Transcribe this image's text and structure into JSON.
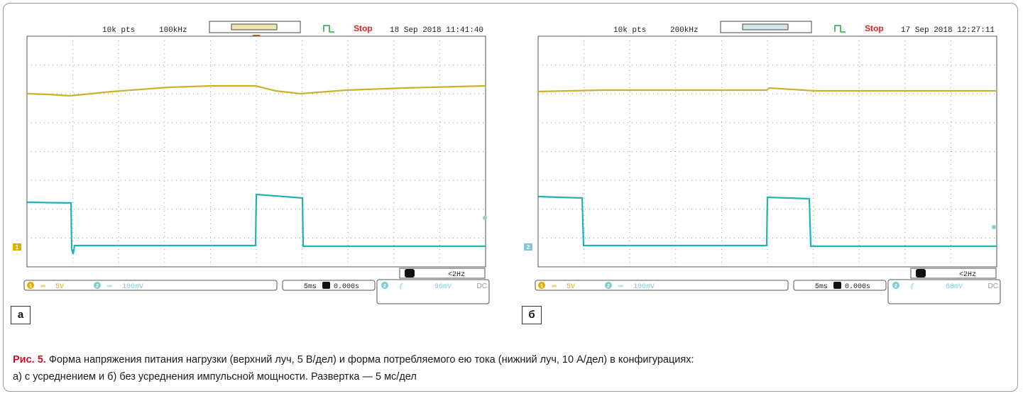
{
  "panels": [
    {
      "label": "а",
      "pts": "10k pts",
      "freq": "100kHz",
      "status": "Stop",
      "datetime": "18 Sep 2018 11:41:40",
      "ch1_scale": "5V",
      "ch2_scale": "100mV",
      "timebase": "5ms",
      "delay": "0.000s",
      "trig_freq": "<2Hz",
      "trig_level": "96mV",
      "coupling": "DC",
      "ch1_marker": "1",
      "ch2_marker": "2"
    },
    {
      "label": "б",
      "pts": "10k pts",
      "freq": "200kHz",
      "status": "Stop",
      "datetime": "17 Sep 2018 12:27:11",
      "ch1_scale": "5V",
      "ch2_scale": "100mV",
      "timebase": "5ms",
      "delay": "0.000s",
      "trig_freq": "<2Hz",
      "trig_level": "68mV",
      "coupling": "DC",
      "ch1_marker": "1",
      "ch2_marker": "2"
    }
  ],
  "caption": {
    "fig": "Рис. 5.",
    "line1": "Форма напряжения питания нагрузки (верхний луч, 5 В/дел) и форма потребляемого ею тока (нижний луч, 10 А/дел) в конфигурациях:",
    "line2": "а) с усреднением и б) без усреднения импульсной мощности. Развертка — 5 мс/дел"
  },
  "colors": {
    "ch1": "#c9b32a",
    "ch2": "#1fb3b3",
    "status": "#e02020",
    "grid": "#9a9a9a",
    "trigger": "#e05020"
  }
}
